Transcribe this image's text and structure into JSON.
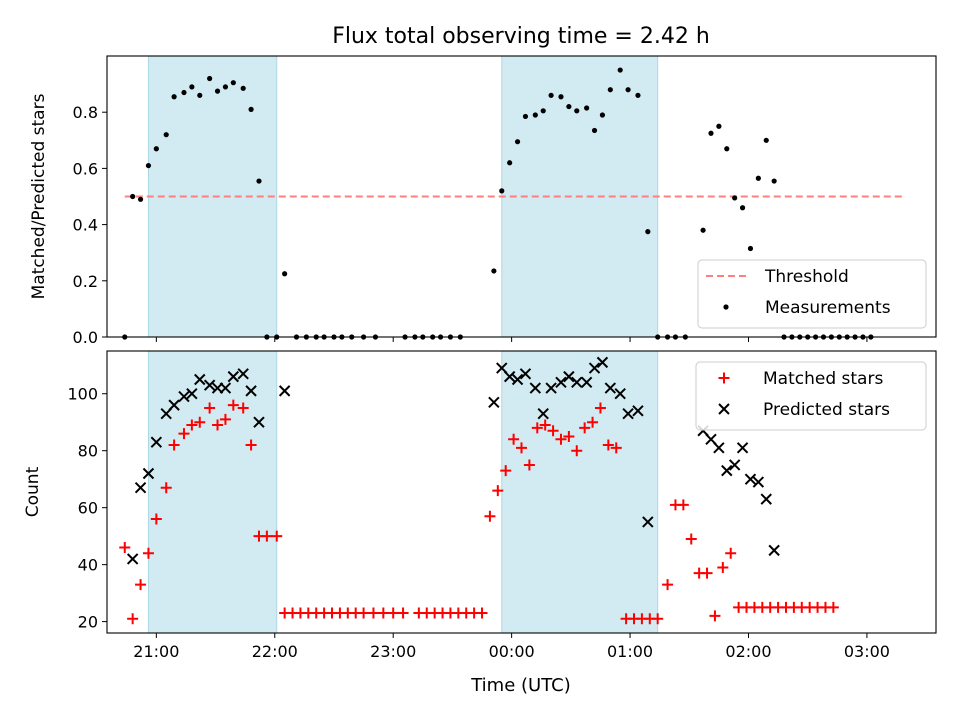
{
  "figure": {
    "title": "Flux total observing time = 2.42 h",
    "xlabel": "Time (UTC)"
  },
  "colors": {
    "shade": "#add8e6",
    "threshold": "#ff7f7f",
    "measurements": "#000000",
    "matched": "#ff0000",
    "predicted": "#000000"
  },
  "chart_data": [
    {
      "type": "scatter",
      "ylabel": "Matched/Predicted stars",
      "ylim": [
        0,
        1.0
      ],
      "yticks": [
        0.0,
        0.2,
        0.4,
        0.6,
        0.8
      ],
      "ytick_labels": [
        "0.0",
        "0.2",
        "0.4",
        "0.6",
        "0.8"
      ],
      "xlim": [
        "20:35",
        "03:35"
      ],
      "xticks": [
        "21:00",
        "22:00",
        "23:00",
        "00:00",
        "01:00",
        "02:00",
        "03:00"
      ],
      "shaded_intervals": [
        [
          "20:56",
          "22:01"
        ],
        [
          "23:55",
          "01:14"
        ]
      ],
      "threshold": {
        "name": "Threshold",
        "y": 0.5,
        "x_range": [
          "20:44",
          "03:18"
        ],
        "style": "dashed"
      },
      "legend": {
        "position": "lower right",
        "entries": [
          "Threshold",
          "Measurements"
        ]
      },
      "series": [
        {
          "name": "Measurements",
          "marker": "dot",
          "points": [
            [
              "20:44",
              0.0
            ],
            [
              "20:48",
              0.5
            ],
            [
              "20:52",
              0.49
            ],
            [
              "20:56",
              0.61
            ],
            [
              "21:00",
              0.67
            ],
            [
              "21:05",
              0.72
            ],
            [
              "21:09",
              0.855
            ],
            [
              "21:14",
              0.87
            ],
            [
              "21:18",
              0.89
            ],
            [
              "21:22",
              0.86
            ],
            [
              "21:27",
              0.92
            ],
            [
              "21:31",
              0.875
            ],
            [
              "21:35",
              0.89
            ],
            [
              "21:39",
              0.905
            ],
            [
              "21:44",
              0.885
            ],
            [
              "21:48",
              0.81
            ],
            [
              "21:52",
              0.555
            ],
            [
              "21:56",
              0.0
            ],
            [
              "22:01",
              0.0
            ],
            [
              "22:05",
              0.225
            ],
            [
              "22:11",
              0.0
            ],
            [
              "22:16",
              0.0
            ],
            [
              "22:21",
              0.0
            ],
            [
              "22:25",
              0.0
            ],
            [
              "22:30",
              0.0
            ],
            [
              "22:34",
              0.0
            ],
            [
              "22:39",
              0.0
            ],
            [
              "22:45",
              0.0
            ],
            [
              "22:51",
              0.0
            ],
            [
              "23:06",
              0.0
            ],
            [
              "23:11",
              0.0
            ],
            [
              "23:15",
              0.0
            ],
            [
              "23:20",
              0.0
            ],
            [
              "23:24",
              0.0
            ],
            [
              "23:29",
              0.0
            ],
            [
              "23:34",
              0.0
            ],
            [
              "23:51",
              0.235
            ],
            [
              "23:55",
              0.52
            ],
            [
              "23:59",
              0.62
            ],
            [
              "00:03",
              0.695
            ],
            [
              "00:07",
              0.785
            ],
            [
              "00:12",
              0.79
            ],
            [
              "00:16",
              0.805
            ],
            [
              "00:20",
              0.86
            ],
            [
              "00:25",
              0.855
            ],
            [
              "00:29",
              0.82
            ],
            [
              "00:33",
              0.805
            ],
            [
              "00:38",
              0.815
            ],
            [
              "00:42",
              0.735
            ],
            [
              "00:46",
              0.79
            ],
            [
              "00:50",
              0.88
            ],
            [
              "00:55",
              0.95
            ],
            [
              "00:59",
              0.88
            ],
            [
              "01:04",
              0.86
            ],
            [
              "01:09",
              0.375
            ],
            [
              "01:14",
              0.0
            ],
            [
              "01:19",
              0.0
            ],
            [
              "01:23",
              0.0
            ],
            [
              "01:28",
              0.0
            ],
            [
              "01:37",
              0.38
            ],
            [
              "01:41",
              0.725
            ],
            [
              "01:45",
              0.75
            ],
            [
              "01:49",
              0.67
            ],
            [
              "01:53",
              0.495
            ],
            [
              "01:57",
              0.46
            ],
            [
              "02:01",
              0.315
            ],
            [
              "02:05",
              0.565
            ],
            [
              "02:09",
              0.7
            ],
            [
              "02:13",
              0.555
            ],
            [
              "02:18",
              0.0
            ],
            [
              "02:22",
              0.0
            ],
            [
              "02:26",
              0.0
            ],
            [
              "02:30",
              0.0
            ],
            [
              "02:34",
              0.0
            ],
            [
              "02:38",
              0.0
            ],
            [
              "02:42",
              0.0
            ],
            [
              "02:46",
              0.0
            ],
            [
              "02:50",
              0.0
            ],
            [
              "02:54",
              0.0
            ],
            [
              "02:58",
              0.0
            ],
            [
              "03:02",
              0.0
            ]
          ]
        }
      ]
    },
    {
      "type": "scatter",
      "ylabel": "Count",
      "ylim": [
        16,
        115
      ],
      "yticks": [
        20,
        40,
        60,
        80,
        100
      ],
      "ytick_labels": [
        "20",
        "40",
        "60",
        "80",
        "100"
      ],
      "xlim": [
        "20:35",
        "03:35"
      ],
      "xticks": [
        "21:00",
        "22:00",
        "23:00",
        "00:00",
        "01:00",
        "02:00",
        "03:00"
      ],
      "xtick_labels": [
        "21:00",
        "22:00",
        "23:00",
        "00:00",
        "01:00",
        "02:00",
        "03:00"
      ],
      "shaded_intervals": [
        [
          "20:56",
          "22:01"
        ],
        [
          "23:55",
          "01:14"
        ]
      ],
      "legend": {
        "position": "upper right",
        "entries": [
          "Matched stars",
          "Predicted stars"
        ]
      },
      "series": [
        {
          "name": "Matched stars",
          "marker": "plus",
          "points": [
            [
              "20:44",
              46
            ],
            [
              "20:48",
              21
            ],
            [
              "20:52",
              33
            ],
            [
              "20:56",
              44
            ],
            [
              "21:00",
              56
            ],
            [
              "21:05",
              67
            ],
            [
              "21:09",
              82
            ],
            [
              "21:14",
              86
            ],
            [
              "21:18",
              89
            ],
            [
              "21:22",
              90
            ],
            [
              "21:27",
              95
            ],
            [
              "21:31",
              89
            ],
            [
              "21:35",
              91
            ],
            [
              "21:39",
              96
            ],
            [
              "21:44",
              95
            ],
            [
              "21:48",
              82
            ],
            [
              "21:52",
              50
            ],
            [
              "21:56",
              50
            ],
            [
              "22:01",
              50
            ],
            [
              "22:05",
              23
            ],
            [
              "22:09",
              23
            ],
            [
              "22:13",
              23
            ],
            [
              "22:17",
              23
            ],
            [
              "22:21",
              23
            ],
            [
              "22:25",
              23
            ],
            [
              "22:29",
              23
            ],
            [
              "22:33",
              23
            ],
            [
              "22:37",
              23
            ],
            [
              "22:41",
              23
            ],
            [
              "22:45",
              23
            ],
            [
              "22:50",
              23
            ],
            [
              "22:55",
              23
            ],
            [
              "23:00",
              23
            ],
            [
              "23:05",
              23
            ],
            [
              "23:13",
              23
            ],
            [
              "23:17",
              23
            ],
            [
              "23:21",
              23
            ],
            [
              "23:25",
              23
            ],
            [
              "23:29",
              23
            ],
            [
              "23:33",
              23
            ],
            [
              "23:37",
              23
            ],
            [
              "23:41",
              23
            ],
            [
              "23:45",
              23
            ],
            [
              "23:49",
              57
            ],
            [
              "23:53",
              66
            ],
            [
              "23:57",
              73
            ],
            [
              "00:01",
              84
            ],
            [
              "00:05",
              81
            ],
            [
              "00:09",
              75
            ],
            [
              "00:13",
              88
            ],
            [
              "00:17",
              89
            ],
            [
              "00:21",
              87
            ],
            [
              "00:25",
              84
            ],
            [
              "00:29",
              85
            ],
            [
              "00:33",
              80
            ],
            [
              "00:37",
              88
            ],
            [
              "00:41",
              90
            ],
            [
              "00:45",
              95
            ],
            [
              "00:49",
              82
            ],
            [
              "00:53",
              81
            ],
            [
              "00:58",
              21
            ],
            [
              "01:02",
              21
            ],
            [
              "01:06",
              21
            ],
            [
              "01:10",
              21
            ],
            [
              "01:14",
              21
            ],
            [
              "01:19",
              33
            ],
            [
              "01:23",
              61
            ],
            [
              "01:27",
              61
            ],
            [
              "01:31",
              49
            ],
            [
              "01:35",
              37
            ],
            [
              "01:39",
              37
            ],
            [
              "01:43",
              22
            ],
            [
              "01:47",
              39
            ],
            [
              "01:51",
              44
            ],
            [
              "01:55",
              25
            ],
            [
              "01:59",
              25
            ],
            [
              "02:03",
              25
            ],
            [
              "02:07",
              25
            ],
            [
              "02:11",
              25
            ],
            [
              "02:15",
              25
            ],
            [
              "02:19",
              25
            ],
            [
              "02:23",
              25
            ],
            [
              "02:27",
              25
            ],
            [
              "02:31",
              25
            ],
            [
              "02:35",
              25
            ],
            [
              "02:39",
              25
            ],
            [
              "02:43",
              25
            ]
          ]
        },
        {
          "name": "Predicted stars",
          "marker": "x",
          "points": [
            [
              "20:48",
              42
            ],
            [
              "20:52",
              67
            ],
            [
              "20:56",
              72
            ],
            [
              "21:00",
              83
            ],
            [
              "21:05",
              93
            ],
            [
              "21:09",
              96
            ],
            [
              "21:14",
              99
            ],
            [
              "21:18",
              100
            ],
            [
              "21:22",
              105
            ],
            [
              "21:27",
              103
            ],
            [
              "21:31",
              102
            ],
            [
              "21:35",
              102
            ],
            [
              "21:39",
              106
            ],
            [
              "21:44",
              107
            ],
            [
              "21:48",
              101
            ],
            [
              "21:52",
              90
            ],
            [
              "22:05",
              101
            ],
            [
              "23:51",
              97
            ],
            [
              "23:55",
              109
            ],
            [
              "23:59",
              106
            ],
            [
              "00:03",
              105
            ],
            [
              "00:07",
              107
            ],
            [
              "00:12",
              102
            ],
            [
              "00:16",
              93
            ],
            [
              "00:20",
              102
            ],
            [
              "00:25",
              104
            ],
            [
              "00:29",
              106
            ],
            [
              "00:33",
              104
            ],
            [
              "00:38",
              104
            ],
            [
              "00:42",
              109
            ],
            [
              "00:46",
              111
            ],
            [
              "00:50",
              102
            ],
            [
              "00:55",
              100
            ],
            [
              "00:59",
              93
            ],
            [
              "01:04",
              94
            ],
            [
              "01:09",
              55
            ],
            [
              "01:37",
              87
            ],
            [
              "01:41",
              84
            ],
            [
              "01:45",
              81
            ],
            [
              "01:49",
              73
            ],
            [
              "01:53",
              75
            ],
            [
              "01:57",
              81
            ],
            [
              "02:01",
              70
            ],
            [
              "02:05",
              69
            ],
            [
              "02:09",
              63
            ],
            [
              "02:13",
              45
            ]
          ]
        }
      ]
    }
  ]
}
